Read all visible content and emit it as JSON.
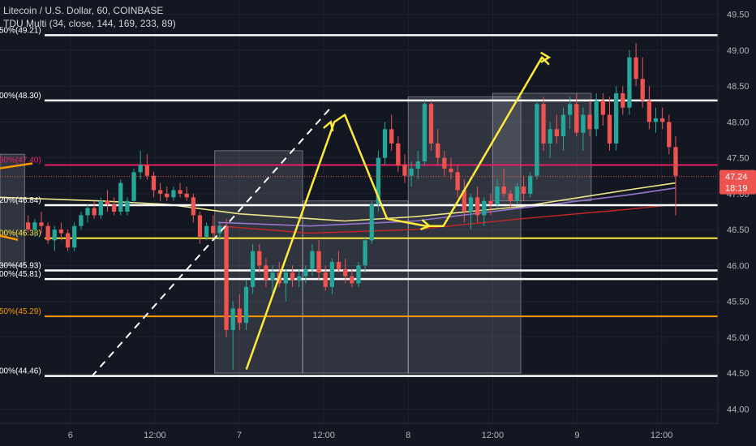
{
  "header": {
    "title": "Litecoin / U.S. Dollar, 60, COINBASE",
    "indicator": "TDU Multi (34, close, 144, 169, 233, 89)"
  },
  "colors": {
    "background": "#131722",
    "grid": "#1f2330",
    "up": "#26a69a",
    "down": "#ef5350",
    "white_level": "#ffffff",
    "yellow": "#ffeb3b",
    "orange": "#ff9800",
    "crimson": "#e91e63",
    "ema_yellow": "#f0e68c",
    "ema_purple": "#9575cd",
    "ema_red": "#c62828",
    "price_label_bg": "#ef5350"
  },
  "chart_data": {
    "type": "candlestick",
    "y_range": [
      43.8,
      49.7
    ],
    "y_ticks": [
      "49.50",
      "49.00",
      "48.50",
      "48.00",
      "47.50",
      "47.00",
      "46.50",
      "46.00",
      "45.50",
      "45.00",
      "44.50",
      "44.00"
    ],
    "x_ticks": [
      {
        "label": "6",
        "t": 6
      },
      {
        "label": "12:00",
        "t": 18
      },
      {
        "label": "7",
        "t": 30
      },
      {
        "label": "12:00",
        "t": 42
      },
      {
        "label": "8",
        "t": 54
      },
      {
        "label": "12:00",
        "t": 66
      },
      {
        "label": "9",
        "t": 78
      },
      {
        "label": "12:00",
        "t": 90
      }
    ],
    "t_range": [
      -4,
      98
    ],
    "fib_levels": [
      {
        "label": "50%(49.21)",
        "value": 49.21,
        "color": "white"
      },
      {
        "label": "00%(48.30)",
        "value": 48.3,
        "color": "white"
      },
      {
        "label": "50%(47.40)",
        "value": 47.4,
        "color": "crimson"
      },
      {
        "label": "20%(46.84)",
        "value": 46.84,
        "color": "white"
      },
      {
        "label": "00%(46.38)",
        "value": 46.38,
        "color": "yellow"
      },
      {
        "label": "30%(45.93)",
        "value": 45.93,
        "color": "white"
      },
      {
        "label": "00%(45.81)",
        "value": 45.81,
        "color": "white"
      },
      {
        "label": "50%(45.29)",
        "value": 45.29,
        "color": "orange"
      },
      {
        "label": "00%(44.46)",
        "value": 44.46,
        "color": "white"
      }
    ],
    "last_price": "47.24",
    "countdown": "18:19",
    "candles": [
      [
        46.6,
        46.7,
        46.45,
        46.5
      ],
      [
        46.5,
        46.65,
        46.4,
        46.6
      ],
      [
        46.6,
        46.75,
        46.45,
        46.55
      ],
      [
        46.55,
        46.6,
        46.3,
        46.35
      ],
      [
        46.35,
        46.55,
        46.2,
        46.5
      ],
      [
        46.5,
        46.6,
        46.35,
        46.45
      ],
      [
        46.45,
        46.5,
        46.2,
        46.25
      ],
      [
        46.25,
        46.6,
        46.2,
        46.55
      ],
      [
        46.55,
        46.75,
        46.5,
        46.7
      ],
      [
        46.7,
        46.85,
        46.6,
        46.8
      ],
      [
        46.8,
        46.9,
        46.65,
        46.7
      ],
      [
        46.7,
        46.95,
        46.65,
        46.9
      ],
      [
        46.9,
        47.05,
        46.75,
        46.85
      ],
      [
        46.85,
        46.95,
        46.7,
        46.75
      ],
      [
        46.75,
        47.2,
        46.7,
        47.15
      ],
      [
        46.75,
        46.95,
        46.7,
        46.9
      ],
      [
        46.9,
        47.35,
        46.85,
        47.3
      ],
      [
        47.3,
        47.6,
        47.2,
        47.4
      ],
      [
        47.4,
        47.55,
        47.2,
        47.25
      ],
      [
        47.25,
        47.3,
        46.95,
        47.05
      ],
      [
        47.05,
        47.15,
        46.9,
        47.0
      ],
      [
        47.0,
        47.1,
        46.9,
        46.95
      ],
      [
        46.95,
        47.1,
        46.9,
        47.05
      ],
      [
        47.05,
        47.15,
        46.95,
        47.0
      ],
      [
        47.0,
        47.1,
        46.9,
        46.95
      ],
      [
        46.95,
        47.0,
        46.6,
        46.7
      ],
      [
        46.7,
        46.75,
        46.3,
        46.4
      ],
      [
        46.4,
        46.6,
        46.35,
        46.55
      ],
      [
        46.55,
        46.7,
        46.4,
        46.45
      ],
      [
        46.45,
        46.6,
        46.35,
        46.55
      ],
      [
        46.55,
        46.65,
        45.0,
        45.1
      ],
      [
        45.1,
        45.5,
        44.55,
        45.4
      ],
      [
        45.4,
        45.6,
        45.1,
        45.2
      ],
      [
        45.2,
        45.8,
        45.1,
        45.7
      ],
      [
        45.7,
        46.3,
        45.6,
        46.2
      ],
      [
        46.2,
        46.3,
        45.9,
        46.0
      ],
      [
        46.0,
        46.1,
        45.7,
        45.8
      ],
      [
        45.8,
        46.0,
        45.6,
        45.9
      ],
      [
        45.9,
        46.05,
        45.7,
        45.75
      ],
      [
        45.75,
        45.95,
        45.5,
        45.9
      ],
      [
        45.9,
        46.0,
        45.7,
        45.8
      ],
      [
        45.8,
        45.95,
        45.7,
        45.85
      ],
      [
        45.85,
        46.0,
        45.75,
        45.95
      ],
      [
        45.95,
        46.3,
        45.85,
        46.2
      ],
      [
        46.2,
        46.35,
        45.8,
        45.9
      ],
      [
        45.9,
        46.0,
        45.65,
        45.7
      ],
      [
        45.7,
        46.1,
        45.6,
        46.05
      ],
      [
        46.05,
        46.2,
        45.9,
        45.95
      ],
      [
        45.95,
        46.1,
        45.75,
        45.85
      ],
      [
        45.85,
        45.95,
        45.7,
        45.75
      ],
      [
        45.75,
        46.05,
        45.7,
        46.0
      ],
      [
        46.0,
        46.4,
        45.9,
        46.35
      ],
      [
        46.35,
        46.9,
        46.3,
        46.85
      ],
      [
        46.85,
        47.6,
        46.75,
        47.5
      ],
      [
        47.5,
        48.0,
        47.4,
        47.9
      ],
      [
        47.9,
        48.1,
        47.6,
        47.7
      ],
      [
        47.7,
        47.8,
        47.3,
        47.4
      ],
      [
        47.4,
        47.55,
        47.15,
        47.25
      ],
      [
        47.25,
        47.45,
        47.1,
        47.35
      ],
      [
        47.35,
        47.6,
        47.2,
        47.45
      ],
      [
        47.45,
        48.3,
        47.4,
        48.25
      ],
      [
        48.25,
        48.3,
        47.6,
        47.7
      ],
      [
        47.7,
        47.9,
        47.4,
        47.5
      ],
      [
        47.5,
        47.6,
        47.25,
        47.35
      ],
      [
        47.35,
        47.5,
        47.2,
        47.3
      ],
      [
        47.3,
        47.4,
        46.95,
        47.05
      ],
      [
        47.05,
        47.2,
        46.6,
        46.75
      ],
      [
        46.75,
        47.0,
        46.5,
        46.95
      ],
      [
        46.95,
        47.1,
        46.6,
        46.7
      ],
      [
        46.7,
        46.95,
        46.55,
        46.9
      ],
      [
        46.9,
        47.0,
        46.7,
        46.85
      ],
      [
        46.85,
        47.2,
        46.8,
        47.1
      ],
      [
        47.1,
        47.35,
        46.95,
        47.0
      ],
      [
        47.0,
        47.05,
        46.8,
        46.9
      ],
      [
        46.9,
        47.15,
        46.85,
        47.1
      ],
      [
        47.1,
        47.25,
        46.9,
        47.0
      ],
      [
        47.0,
        47.3,
        46.95,
        47.25
      ],
      [
        47.25,
        48.3,
        47.2,
        48.25
      ],
      [
        48.25,
        48.35,
        47.6,
        47.7
      ],
      [
        47.7,
        48.0,
        47.5,
        47.9
      ],
      [
        47.9,
        48.1,
        47.7,
        47.8
      ],
      [
        47.8,
        48.2,
        47.6,
        48.1
      ],
      [
        48.1,
        48.35,
        47.9,
        48.25
      ],
      [
        48.25,
        48.4,
        47.8,
        47.85
      ],
      [
        47.85,
        48.2,
        47.6,
        48.1
      ],
      [
        48.1,
        48.3,
        47.8,
        47.9
      ],
      [
        47.9,
        48.4,
        47.8,
        48.3
      ],
      [
        48.3,
        48.4,
        47.95,
        48.1
      ],
      [
        48.1,
        48.35,
        47.6,
        47.7
      ],
      [
        47.7,
        48.5,
        47.6,
        48.4
      ],
      [
        48.4,
        48.5,
        48.1,
        48.2
      ],
      [
        48.2,
        49.0,
        48.1,
        48.9
      ],
      [
        48.9,
        49.1,
        48.5,
        48.6
      ],
      [
        48.6,
        48.9,
        48.2,
        48.3
      ],
      [
        48.3,
        48.5,
        47.9,
        48.0
      ],
      [
        48.0,
        48.2,
        47.85,
        48.05
      ],
      [
        48.05,
        48.2,
        47.9,
        48.0
      ],
      [
        48.0,
        48.1,
        47.55,
        47.65
      ],
      [
        47.65,
        47.8,
        46.7,
        47.25
      ]
    ]
  }
}
